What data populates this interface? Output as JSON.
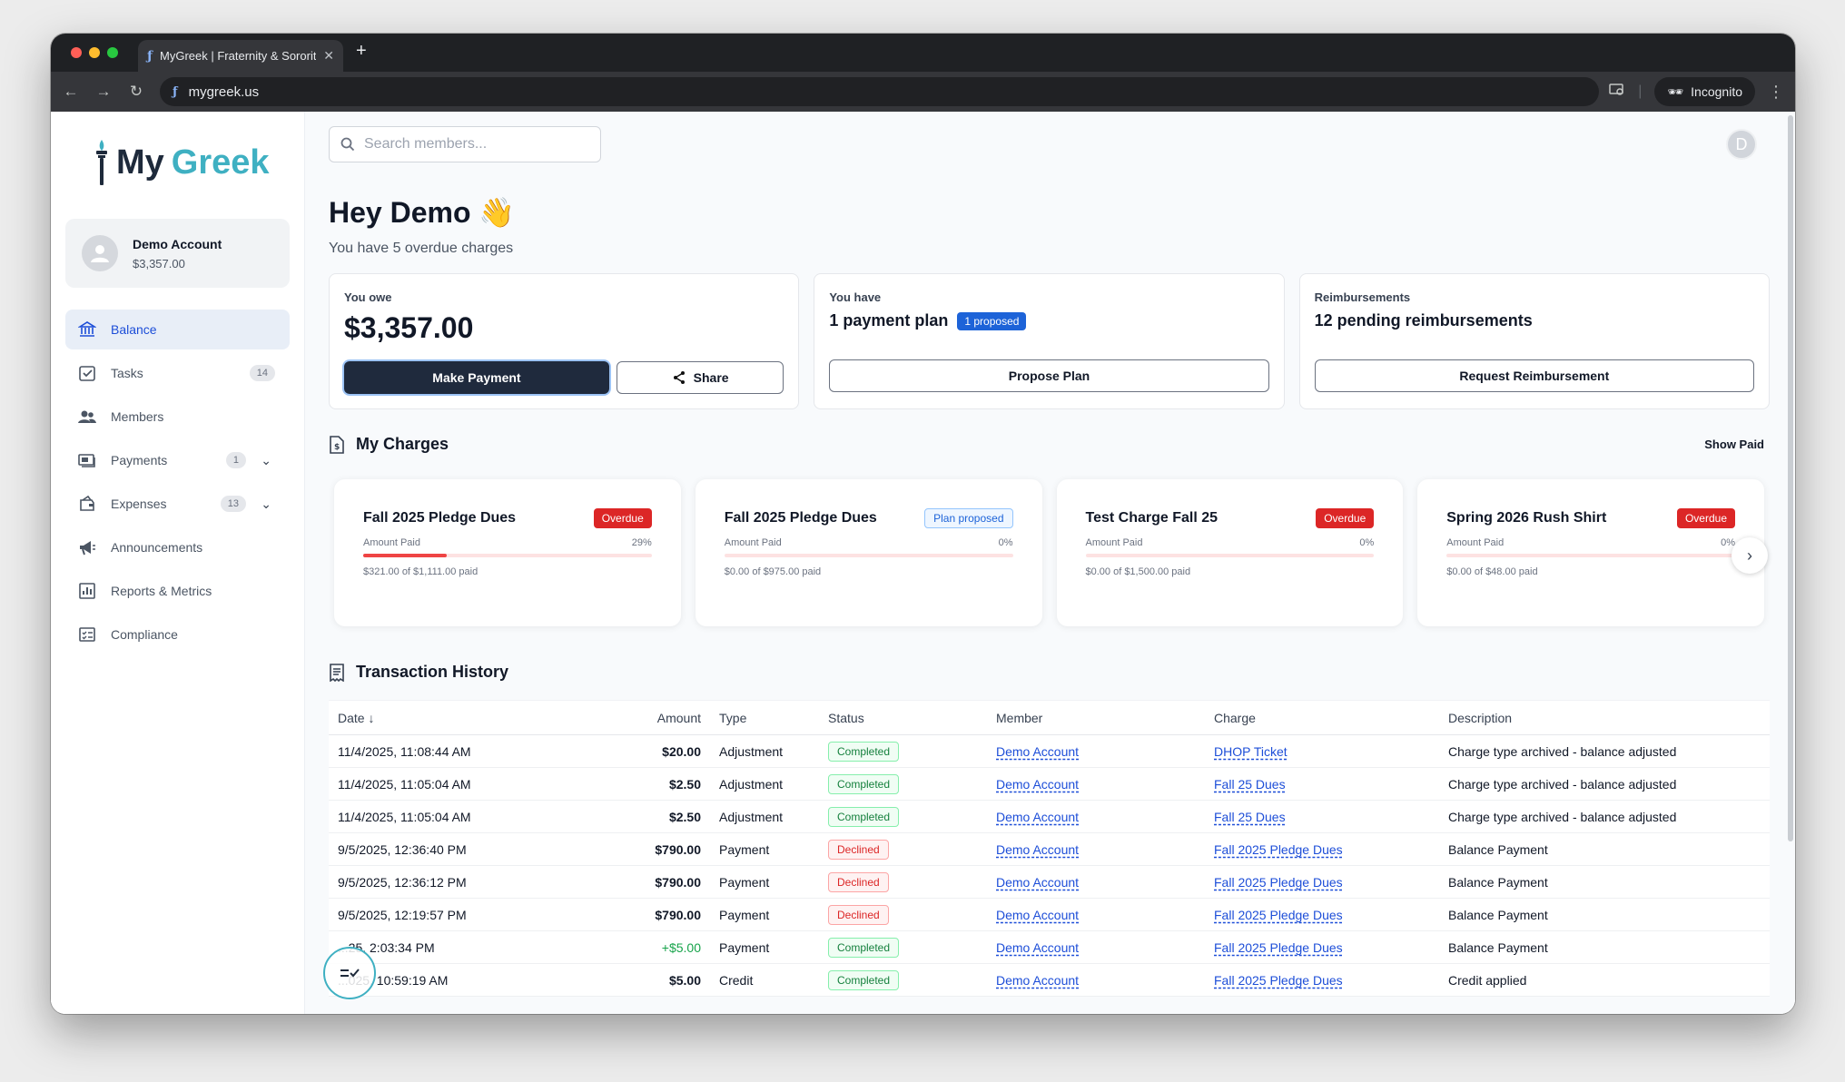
{
  "browser": {
    "tab_title": "MyGreek | Fraternity & Sororit",
    "url": "mygreek.us",
    "incognito_label": "Incognito",
    "traffic_colors": [
      "#ff5f57",
      "#febc2e",
      "#28c840"
    ]
  },
  "sidebar": {
    "logo_my": "My",
    "logo_greek": "Greek",
    "account": {
      "name": "Demo Account",
      "balance": "$3,357.00"
    },
    "items": [
      {
        "label": "Balance",
        "icon": "bank-icon",
        "active": true
      },
      {
        "label": "Tasks",
        "icon": "checkbox-icon",
        "badge": "14"
      },
      {
        "label": "Members",
        "icon": "users-icon"
      },
      {
        "label": "Payments",
        "icon": "payments-icon",
        "badge": "1",
        "expandable": true
      },
      {
        "label": "Expenses",
        "icon": "expenses-icon",
        "badge": "13",
        "expandable": true
      },
      {
        "label": "Announcements",
        "icon": "megaphone-icon"
      },
      {
        "label": "Reports & Metrics",
        "icon": "chart-icon"
      },
      {
        "label": "Compliance",
        "icon": "compliance-icon"
      }
    ]
  },
  "header": {
    "search_placeholder": "Search members...",
    "avatar_letter": "D"
  },
  "greeting": {
    "title": "Hey Demo 👋",
    "subtitle": "You have 5 overdue charges"
  },
  "summary": {
    "owe": {
      "label": "You owe",
      "amount": "$3,357.00",
      "pay_button": "Make Payment",
      "share_button": "Share"
    },
    "plan": {
      "label": "You have",
      "text": "1 payment plan",
      "badge": "1 proposed",
      "button": "Propose Plan"
    },
    "reimb": {
      "label": "Reimbursements",
      "text": "12 pending reimbursements",
      "button": "Request Reimbursement"
    }
  },
  "charges_section": {
    "title": "My Charges",
    "show_paid": "Show Paid"
  },
  "charges": [
    {
      "name": "Fall 2025 Pledge Dues",
      "badge": "Overdue",
      "badge_type": "red",
      "amount_label": "Amount Paid",
      "percent": "29%",
      "progress": 0.29,
      "paid_text": "$321.00 of $1,111.00 paid"
    },
    {
      "name": "Fall 2025 Pledge Dues",
      "badge": "Plan proposed",
      "badge_type": "plan",
      "amount_label": "Amount Paid",
      "percent": "0%",
      "progress": 0,
      "paid_text": "$0.00 of $975.00 paid"
    },
    {
      "name": "Test Charge Fall 25",
      "badge": "Overdue",
      "badge_type": "red",
      "amount_label": "Amount Paid",
      "percent": "0%",
      "progress": 0,
      "paid_text": "$0.00 of $1,500.00 paid"
    },
    {
      "name": "Spring 2026 Rush Shirt",
      "badge": "Overdue",
      "badge_type": "red",
      "amount_label": "Amount Paid",
      "percent": "0%",
      "progress": 0,
      "paid_text": "$0.00 of $48.00 paid"
    }
  ],
  "transactions_section": {
    "title": "Transaction History"
  },
  "table": {
    "headers": {
      "date": "Date",
      "amount": "Amount",
      "type": "Type",
      "status": "Status",
      "member": "Member",
      "charge": "Charge",
      "description": "Description"
    },
    "rows": [
      {
        "date": "11/4/2025, 11:08:44 AM",
        "amount": "$20.00",
        "type": "Adjustment",
        "status": "Completed",
        "member": "Demo Account",
        "charge": "DHOP Ticket",
        "description": "Charge type archived - balance adjusted"
      },
      {
        "date": "11/4/2025, 11:05:04 AM",
        "amount": "$2.50",
        "type": "Adjustment",
        "status": "Completed",
        "member": "Demo Account",
        "charge": "Fall 25 Dues",
        "description": "Charge type archived - balance adjusted"
      },
      {
        "date": "11/4/2025, 11:05:04 AM",
        "amount": "$2.50",
        "type": "Adjustment",
        "status": "Completed",
        "member": "Demo Account",
        "charge": "Fall 25 Dues",
        "description": "Charge type archived - balance adjusted"
      },
      {
        "date": "9/5/2025, 12:36:40 PM",
        "amount": "$790.00",
        "type": "Payment",
        "status": "Declined",
        "member": "Demo Account",
        "charge": "Fall 2025 Pledge Dues",
        "description": "Balance Payment"
      },
      {
        "date": "9/5/2025, 12:36:12 PM",
        "amount": "$790.00",
        "type": "Payment",
        "status": "Declined",
        "member": "Demo Account",
        "charge": "Fall 2025 Pledge Dues",
        "description": "Balance Payment"
      },
      {
        "date": "9/5/2025, 12:19:57 PM",
        "amount": "$790.00",
        "type": "Payment",
        "status": "Declined",
        "member": "Demo Account",
        "charge": "Fall 2025 Pledge Dues",
        "description": "Balance Payment"
      },
      {
        "date": "...25, 2:03:34 PM",
        "amount": "+$5.00",
        "type": "Payment",
        "status": "Completed",
        "member": "Demo Account",
        "charge": "Fall 2025 Pledge Dues",
        "description": "Balance Payment"
      },
      {
        "date": "...025, 10:59:19 AM",
        "amount": "$5.00",
        "type": "Credit",
        "status": "Completed",
        "member": "Demo Account",
        "charge": "Fall 2025 Pledge Dues",
        "description": "Credit applied"
      }
    ]
  }
}
